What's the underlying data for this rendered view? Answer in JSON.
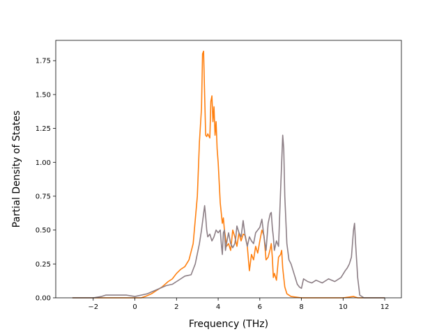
{
  "chart_data": {
    "type": "line",
    "title": "",
    "xlabel": "Frequency (THz)",
    "ylabel": "Partial Density of States",
    "xlim": [
      -3.8,
      12.8
    ],
    "ylim": [
      0,
      1.9
    ],
    "xticks": [
      -2,
      0,
      2,
      4,
      6,
      8,
      10,
      12
    ],
    "yticks": [
      0.0,
      0.25,
      0.5,
      0.75,
      1.0,
      1.25,
      1.5,
      1.75
    ],
    "xtick_labels": [
      "−2",
      "0",
      "2",
      "4",
      "6",
      "8",
      "10",
      "12"
    ],
    "ytick_labels": [
      "0.00",
      "0.25",
      "0.50",
      "0.75",
      "1.00",
      "1.25",
      "1.50",
      "1.75"
    ],
    "grid": false,
    "legend": false,
    "colors": {
      "orange": "#ff7f0e",
      "gray": "#8c7e85",
      "axes": "#000000",
      "background": "#ffffff"
    },
    "series": [
      {
        "color": "#ff7f0e",
        "x": [
          -3.0,
          -1.5,
          -1.2,
          -0.8,
          -0.3,
          0.0,
          0.3,
          0.5,
          0.8,
          1.0,
          1.3,
          1.6,
          1.8,
          2.0,
          2.2,
          2.4,
          2.6,
          2.8,
          3.0,
          3.1,
          3.2,
          3.25,
          3.3,
          3.35,
          3.4,
          3.45,
          3.5,
          3.6,
          3.65,
          3.7,
          3.75,
          3.8,
          3.85,
          3.9,
          3.95,
          4.0,
          4.1,
          4.2,
          4.25,
          4.3,
          4.35,
          4.4,
          4.5,
          4.6,
          4.7,
          4.8,
          4.9,
          5.0,
          5.1,
          5.2,
          5.3,
          5.4,
          5.5,
          5.6,
          5.7,
          5.8,
          5.9,
          6.0,
          6.1,
          6.2,
          6.3,
          6.4,
          6.5,
          6.55,
          6.6,
          6.65,
          6.7,
          6.8,
          6.9,
          7.0,
          7.05,
          7.1,
          7.2,
          7.3,
          7.5,
          8.0,
          9.0,
          10.0,
          10.5,
          10.7,
          11.0,
          12.0
        ],
        "y": [
          0.0,
          0.0,
          0.0,
          0.0,
          0.0,
          0.0,
          0.0,
          0.01,
          0.03,
          0.05,
          0.08,
          0.12,
          0.14,
          0.18,
          0.21,
          0.23,
          0.28,
          0.4,
          0.75,
          1.15,
          1.4,
          1.8,
          1.82,
          1.5,
          1.2,
          1.19,
          1.21,
          1.18,
          1.45,
          1.49,
          1.3,
          1.41,
          1.2,
          1.3,
          1.1,
          1.0,
          0.7,
          0.55,
          0.59,
          0.5,
          0.45,
          0.38,
          0.4,
          0.35,
          0.5,
          0.45,
          0.38,
          0.48,
          0.42,
          0.47,
          0.46,
          0.38,
          0.2,
          0.32,
          0.28,
          0.38,
          0.33,
          0.42,
          0.5,
          0.46,
          0.28,
          0.3,
          0.36,
          0.4,
          0.3,
          0.15,
          0.18,
          0.13,
          0.3,
          0.32,
          0.35,
          0.22,
          0.08,
          0.03,
          0.01,
          0.0,
          0.0,
          0.0,
          0.01,
          0.0,
          0.0,
          0.0
        ]
      },
      {
        "color": "#8c7e85",
        "x": [
          -3.0,
          -2.0,
          -1.6,
          -1.4,
          -1.2,
          -0.8,
          -0.4,
          0.0,
          0.3,
          0.6,
          0.9,
          1.2,
          1.5,
          1.8,
          2.0,
          2.2,
          2.4,
          2.7,
          2.9,
          3.1,
          3.2,
          3.3,
          3.35,
          3.4,
          3.45,
          3.5,
          3.6,
          3.7,
          3.8,
          3.9,
          4.0,
          4.1,
          4.15,
          4.2,
          4.25,
          4.3,
          4.35,
          4.4,
          4.5,
          4.6,
          4.7,
          4.8,
          4.85,
          4.9,
          5.0,
          5.1,
          5.2,
          5.3,
          5.4,
          5.5,
          5.6,
          5.7,
          5.8,
          5.9,
          6.0,
          6.1,
          6.2,
          6.3,
          6.4,
          6.5,
          6.55,
          6.6,
          6.65,
          6.7,
          6.8,
          6.9,
          7.0,
          7.05,
          7.1,
          7.15,
          7.2,
          7.3,
          7.4,
          7.5,
          7.6,
          7.7,
          7.8,
          7.9,
          8.0,
          8.1,
          8.3,
          8.5,
          8.7,
          9.0,
          9.3,
          9.6,
          9.9,
          10.1,
          10.2,
          10.3,
          10.4,
          10.45,
          10.5,
          10.55,
          10.6,
          10.7,
          10.8,
          11.0,
          12.0
        ],
        "y": [
          0.0,
          0.0,
          0.01,
          0.02,
          0.02,
          0.02,
          0.02,
          0.01,
          0.02,
          0.03,
          0.05,
          0.07,
          0.09,
          0.1,
          0.12,
          0.14,
          0.16,
          0.17,
          0.25,
          0.4,
          0.5,
          0.62,
          0.68,
          0.6,
          0.5,
          0.45,
          0.47,
          0.42,
          0.45,
          0.5,
          0.48,
          0.5,
          0.4,
          0.32,
          0.48,
          0.5,
          0.35,
          0.4,
          0.48,
          0.4,
          0.37,
          0.4,
          0.45,
          0.53,
          0.48,
          0.45,
          0.57,
          0.45,
          0.38,
          0.45,
          0.42,
          0.4,
          0.48,
          0.5,
          0.52,
          0.58,
          0.45,
          0.35,
          0.55,
          0.62,
          0.63,
          0.52,
          0.45,
          0.35,
          0.42,
          0.38,
          0.8,
          1.0,
          1.2,
          1.1,
          0.75,
          0.4,
          0.28,
          0.25,
          0.2,
          0.15,
          0.1,
          0.08,
          0.07,
          0.14,
          0.12,
          0.11,
          0.13,
          0.11,
          0.14,
          0.12,
          0.15,
          0.2,
          0.22,
          0.25,
          0.3,
          0.4,
          0.5,
          0.55,
          0.4,
          0.15,
          0.02,
          0.0,
          0.0
        ]
      }
    ]
  }
}
